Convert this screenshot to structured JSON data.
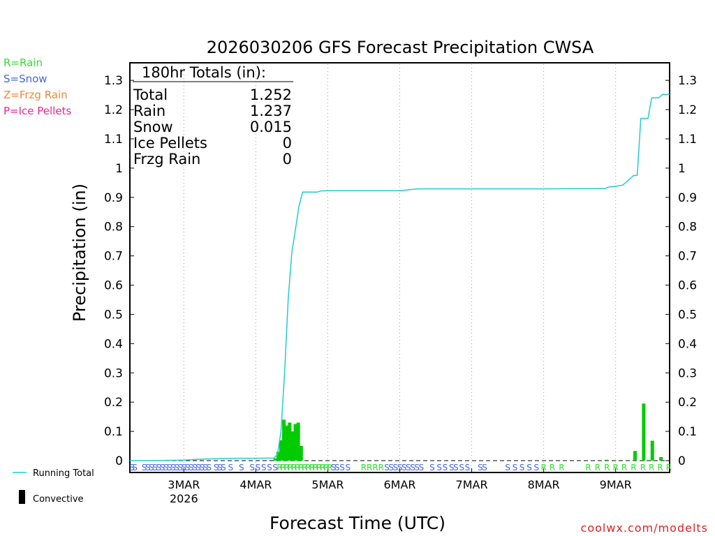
{
  "chart_data": {
    "type": "bar+line",
    "title": "2026030206 GFS Forecast Precipitation CWSA",
    "ylabel": "Precipitation (in)",
    "xlabel": "Forecast Time (UTC)",
    "ylim": [
      0,
      1.36
    ],
    "y_ticks": [
      "0",
      "0.1",
      "0.2",
      "0.3",
      "0.4",
      "0.5",
      "0.6",
      "0.7",
      "0.8",
      "0.9",
      "1",
      "1.1",
      "1.2",
      "1.3"
    ],
    "y_tick_values": [
      0,
      0.1,
      0.2,
      0.3,
      0.4,
      0.5,
      0.6,
      0.7,
      0.8,
      0.9,
      1,
      1.1,
      1.2,
      1.3
    ],
    "x_range_days": [
      2.25,
      9.75
    ],
    "x_ticks": [
      {
        "day": 3,
        "label": "3MAR",
        "sub": "2026"
      },
      {
        "day": 4,
        "label": "4MAR",
        "sub": ""
      },
      {
        "day": 5,
        "label": "5MAR",
        "sub": ""
      },
      {
        "day": 6,
        "label": "6MAR",
        "sub": ""
      },
      {
        "day": 7,
        "label": "7MAR",
        "sub": ""
      },
      {
        "day": 8,
        "label": "8MAR",
        "sub": ""
      },
      {
        "day": 9,
        "label": "9MAR",
        "sub": ""
      }
    ],
    "totals": {
      "header": "180hr Totals (in):",
      "rows": [
        {
          "label": "Total",
          "value": "1.252"
        },
        {
          "label": "Rain",
          "value": "1.237"
        },
        {
          "label": "Snow",
          "value": "0.015"
        },
        {
          "label": "Ice Pellets",
          "value": "0"
        },
        {
          "label": "Frzg Rain",
          "value": "0"
        }
      ]
    },
    "type_legend": [
      {
        "text": "R=Rain",
        "color": "#33dd33"
      },
      {
        "text": "S=Snow",
        "color": "#4466dd"
      },
      {
        "text": "Z=Frzg Rain",
        "color": "#ee8833"
      },
      {
        "text": "P=Ice Pellets",
        "color": "#ee2299"
      }
    ],
    "series_legend": [
      {
        "name": "Running Total",
        "color": "#22cccc"
      },
      {
        "name": "Convective",
        "color": "#000000"
      }
    ],
    "running_total": {
      "x": [
        2.25,
        2.5,
        2.75,
        3.0,
        3.25,
        3.5,
        3.75,
        4.0,
        4.25,
        4.3,
        4.35,
        4.4,
        4.45,
        4.5,
        4.55,
        4.6,
        4.65,
        4.7,
        4.85,
        4.9,
        5.0,
        5.5,
        6.0,
        6.25,
        6.5,
        7.0,
        7.5,
        8.0,
        8.5,
        8.85,
        8.9,
        9.0,
        9.1,
        9.25,
        9.3,
        9.35,
        9.4,
        9.45,
        9.5,
        9.55,
        9.6,
        9.65,
        9.7,
        9.75
      ],
      "y": [
        0,
        0,
        0.001,
        0.002,
        0.005,
        0.007,
        0.008,
        0.008,
        0.009,
        0.02,
        0.1,
        0.3,
        0.55,
        0.71,
        0.79,
        0.87,
        0.918,
        0.918,
        0.918,
        0.922,
        0.923,
        0.923,
        0.923,
        0.929,
        0.929,
        0.929,
        0.929,
        0.929,
        0.93,
        0.93,
        0.935,
        0.938,
        0.942,
        0.975,
        0.975,
        1.17,
        1.17,
        1.17,
        1.24,
        1.24,
        1.24,
        1.252,
        1.252,
        1.252
      ]
    },
    "bars": {
      "x": [
        4.27,
        4.31,
        4.35,
        4.39,
        4.43,
        4.47,
        4.51,
        4.55,
        4.59,
        4.63,
        8.87,
        9.27,
        9.39,
        9.51,
        9.63
      ],
      "values": [
        0.008,
        0.03,
        0.07,
        0.14,
        0.12,
        0.13,
        0.1,
        0.125,
        0.13,
        0.05,
        0.003,
        0.033,
        0.195,
        0.068,
        0.012
      ],
      "color": "#00cc00"
    },
    "ptype_markers": [
      {
        "x": 2.28,
        "t": "S"
      },
      {
        "x": 2.32,
        "t": "S"
      },
      {
        "x": 2.45,
        "t": "S"
      },
      {
        "x": 2.5,
        "t": "S"
      },
      {
        "x": 2.55,
        "t": "S"
      },
      {
        "x": 2.6,
        "t": "S"
      },
      {
        "x": 2.65,
        "t": "S"
      },
      {
        "x": 2.7,
        "t": "S"
      },
      {
        "x": 2.75,
        "t": "S"
      },
      {
        "x": 2.8,
        "t": "S"
      },
      {
        "x": 2.85,
        "t": "S"
      },
      {
        "x": 2.9,
        "t": "S"
      },
      {
        "x": 2.95,
        "t": "S"
      },
      {
        "x": 3.0,
        "t": "S"
      },
      {
        "x": 3.05,
        "t": "S"
      },
      {
        "x": 3.1,
        "t": "S"
      },
      {
        "x": 3.15,
        "t": "S"
      },
      {
        "x": 3.2,
        "t": "S"
      },
      {
        "x": 3.25,
        "t": "S"
      },
      {
        "x": 3.3,
        "t": "S"
      },
      {
        "x": 3.35,
        "t": "S"
      },
      {
        "x": 3.45,
        "t": "S"
      },
      {
        "x": 3.5,
        "t": "S"
      },
      {
        "x": 3.55,
        "t": "S"
      },
      {
        "x": 3.65,
        "t": "S"
      },
      {
        "x": 3.8,
        "t": "S"
      },
      {
        "x": 3.95,
        "t": "S"
      },
      {
        "x": 4.03,
        "t": "S"
      },
      {
        "x": 4.11,
        "t": "S"
      },
      {
        "x": 4.19,
        "t": "S"
      },
      {
        "x": 4.27,
        "t": "S"
      },
      {
        "x": 4.33,
        "t": "R"
      },
      {
        "x": 4.38,
        "t": "R"
      },
      {
        "x": 4.43,
        "t": "R"
      },
      {
        "x": 4.48,
        "t": "R"
      },
      {
        "x": 4.53,
        "t": "R"
      },
      {
        "x": 4.58,
        "t": "R"
      },
      {
        "x": 4.63,
        "t": "R"
      },
      {
        "x": 4.68,
        "t": "R"
      },
      {
        "x": 4.73,
        "t": "R"
      },
      {
        "x": 4.78,
        "t": "R"
      },
      {
        "x": 4.83,
        "t": "R"
      },
      {
        "x": 4.88,
        "t": "R"
      },
      {
        "x": 4.93,
        "t": "R"
      },
      {
        "x": 4.98,
        "t": "R"
      },
      {
        "x": 5.03,
        "t": "R"
      },
      {
        "x": 5.08,
        "t": "S"
      },
      {
        "x": 5.13,
        "t": "S"
      },
      {
        "x": 5.2,
        "t": "S"
      },
      {
        "x": 5.28,
        "t": "S"
      },
      {
        "x": 5.5,
        "t": "R"
      },
      {
        "x": 5.58,
        "t": "R"
      },
      {
        "x": 5.66,
        "t": "R"
      },
      {
        "x": 5.74,
        "t": "R"
      },
      {
        "x": 5.82,
        "t": "S"
      },
      {
        "x": 5.88,
        "t": "S"
      },
      {
        "x": 5.94,
        "t": "S"
      },
      {
        "x": 6.0,
        "t": "S"
      },
      {
        "x": 6.06,
        "t": "S"
      },
      {
        "x": 6.12,
        "t": "S"
      },
      {
        "x": 6.18,
        "t": "S"
      },
      {
        "x": 6.24,
        "t": "S"
      },
      {
        "x": 6.3,
        "t": "S"
      },
      {
        "x": 6.45,
        "t": "S"
      },
      {
        "x": 6.55,
        "t": "S"
      },
      {
        "x": 6.63,
        "t": "S"
      },
      {
        "x": 6.72,
        "t": "S"
      },
      {
        "x": 6.78,
        "t": "S"
      },
      {
        "x": 6.86,
        "t": "S"
      },
      {
        "x": 6.94,
        "t": "S"
      },
      {
        "x": 7.12,
        "t": "S"
      },
      {
        "x": 7.18,
        "t": "S"
      },
      {
        "x": 7.5,
        "t": "S"
      },
      {
        "x": 7.6,
        "t": "S"
      },
      {
        "x": 7.7,
        "t": "S"
      },
      {
        "x": 7.8,
        "t": "S"
      },
      {
        "x": 7.9,
        "t": "S"
      },
      {
        "x": 8.0,
        "t": "R"
      },
      {
        "x": 8.12,
        "t": "R"
      },
      {
        "x": 8.25,
        "t": "R"
      },
      {
        "x": 8.62,
        "t": "R"
      },
      {
        "x": 8.75,
        "t": "R"
      },
      {
        "x": 8.88,
        "t": "R"
      },
      {
        "x": 9.0,
        "t": "R"
      },
      {
        "x": 9.12,
        "t": "R"
      },
      {
        "x": 9.25,
        "t": "R"
      },
      {
        "x": 9.38,
        "t": "R"
      },
      {
        "x": 9.5,
        "t": "R"
      },
      {
        "x": 9.62,
        "t": "R"
      },
      {
        "x": 9.74,
        "t": "R"
      }
    ],
    "credit": "coolwx.com/modelts"
  },
  "colors": {
    "rain": "#33dd33",
    "snow": "#4466dd",
    "running_total": "#22cccc",
    "bar": "#00cc00"
  }
}
